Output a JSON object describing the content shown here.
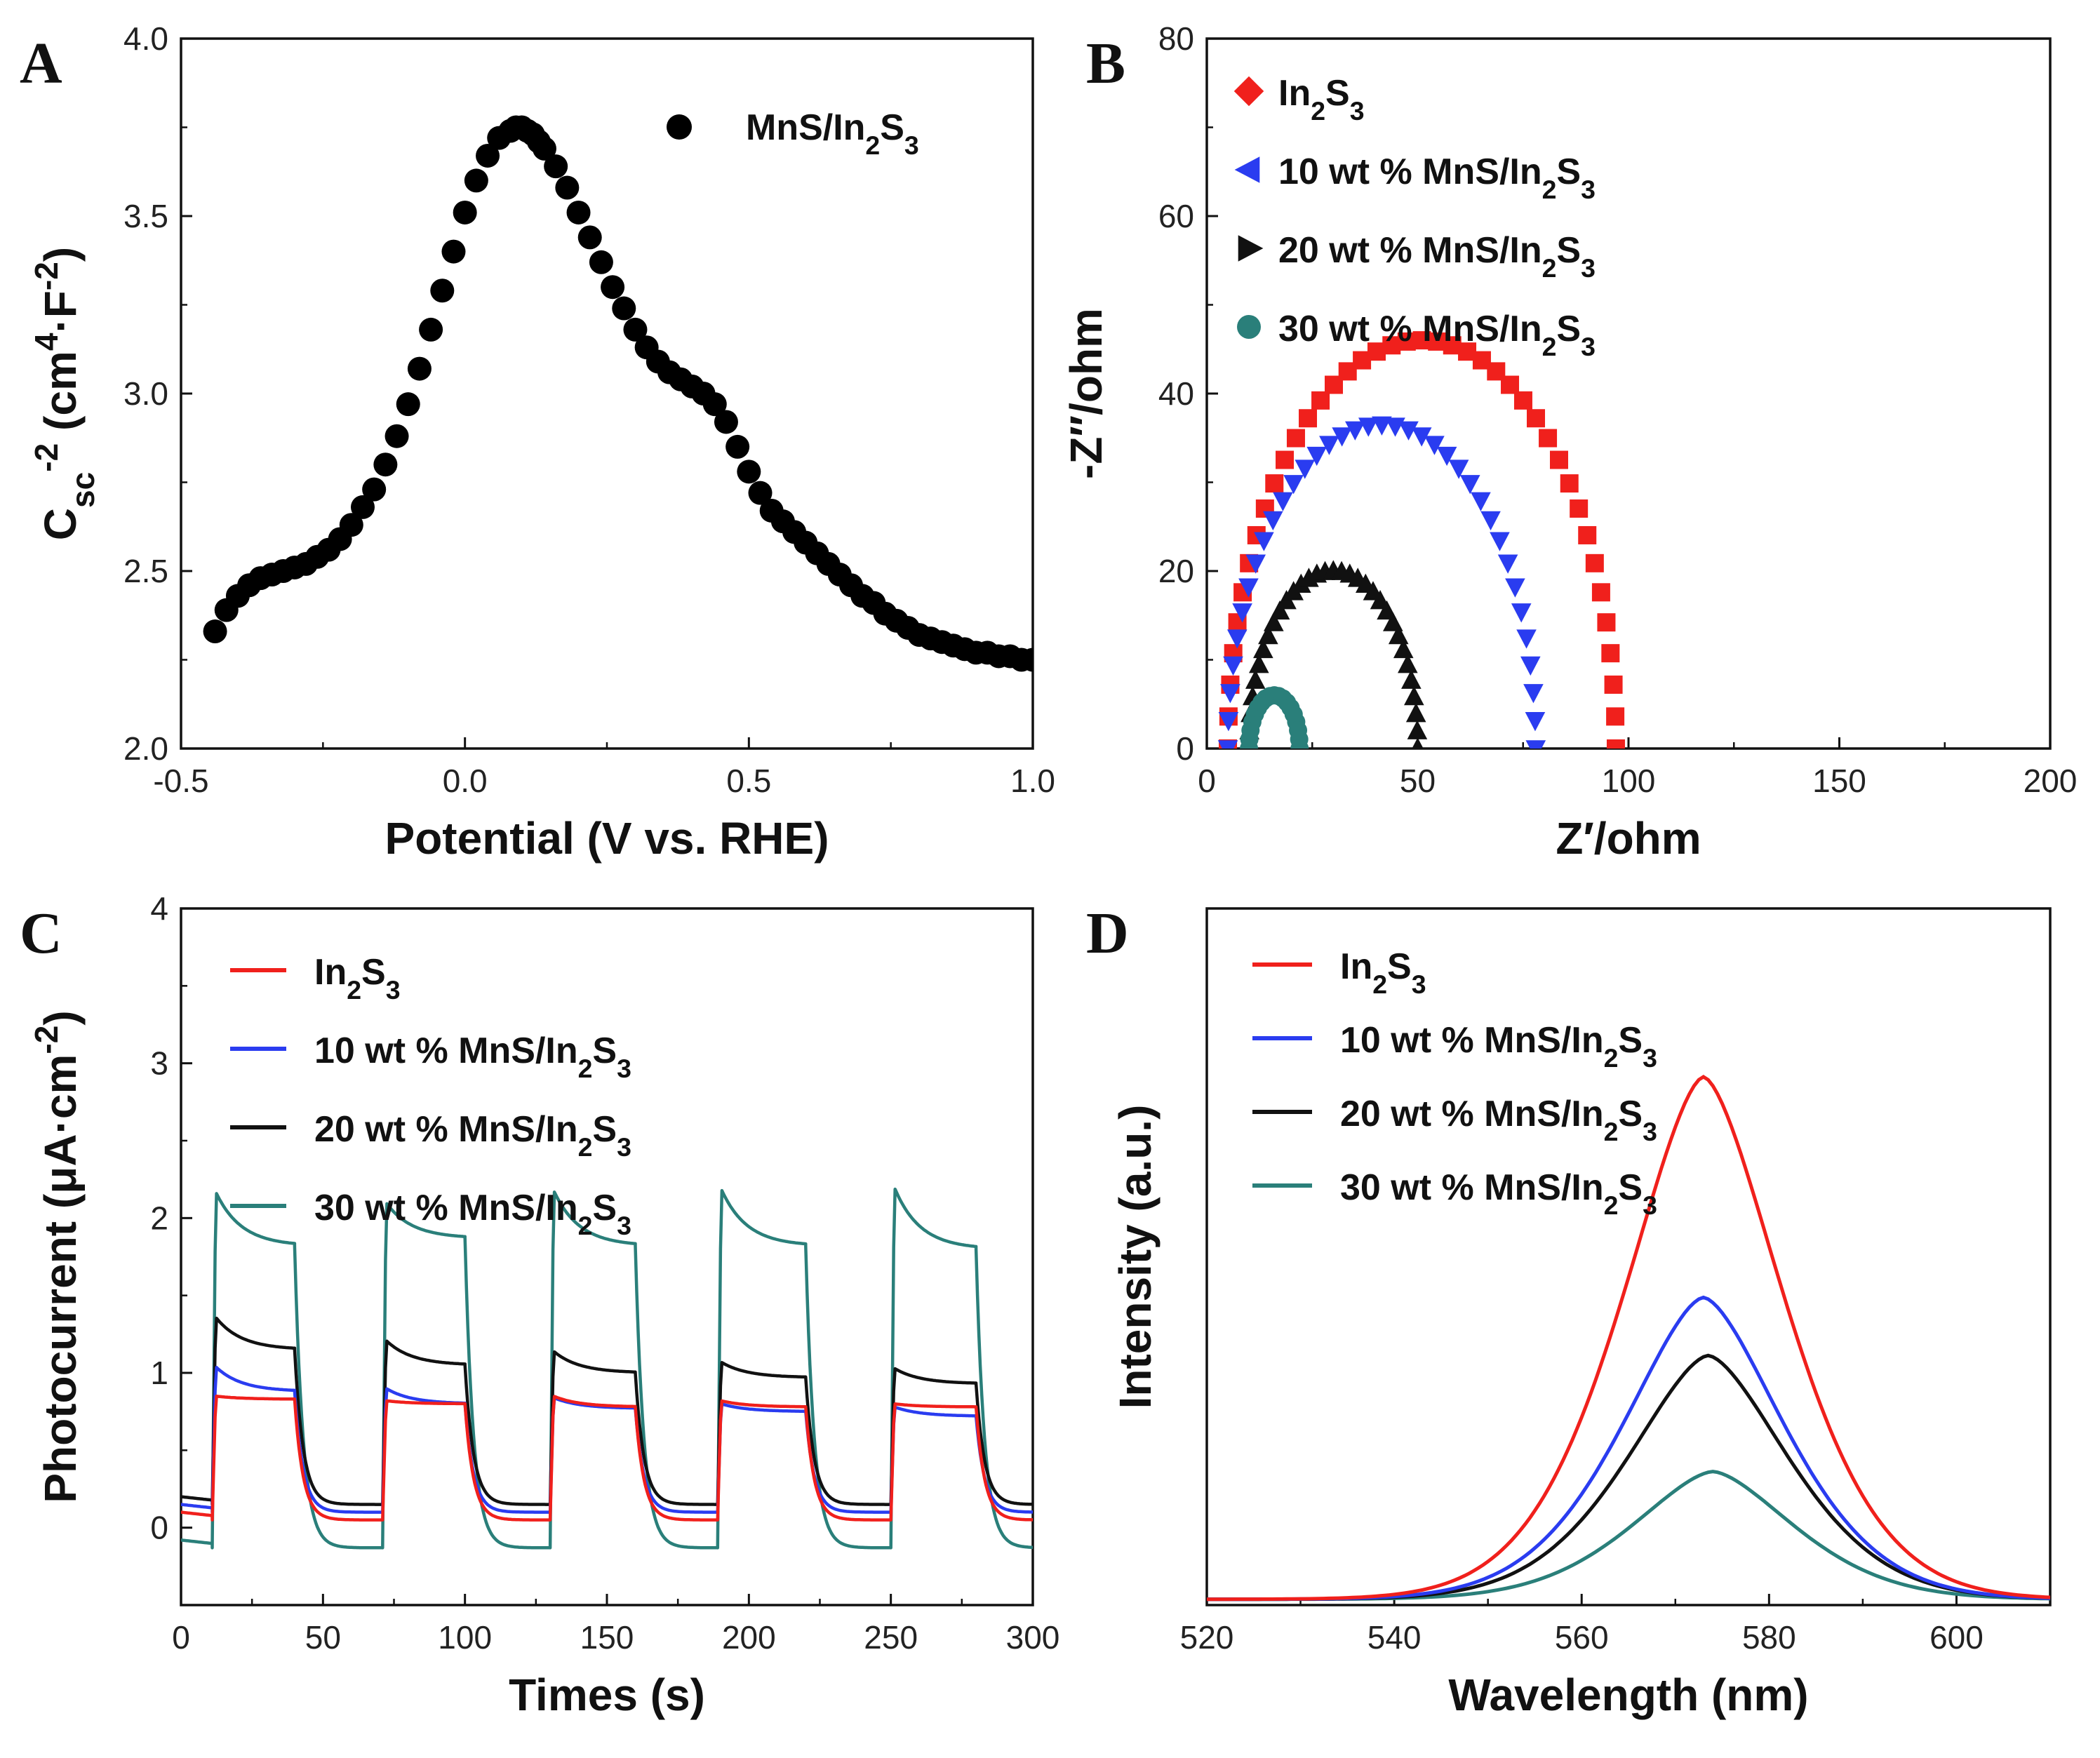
{
  "figure": {
    "background": "#ffffff",
    "subscript_format": "text between _{ } is typeset as subscript, between ^{ } as superscript"
  },
  "chart_data": [
    {
      "panel": "A",
      "type": "scatter",
      "xlabel": "Potential (V vs. RHE)",
      "ylabel": "C_{sc}^{-2} (cm^{4}·F^{-2})",
      "xlim": [
        -0.5,
        1.0
      ],
      "ylim": [
        2.0,
        4.0
      ],
      "xticks": [
        -0.5,
        0.0,
        0.5,
        1.0
      ],
      "xtick_labels": [
        "-0.5",
        "0.0",
        "0.5",
        "1.0"
      ],
      "yticks": [
        2.0,
        2.5,
        3.0,
        3.5,
        4.0
      ],
      "ytick_labels": [
        "2.0",
        "2.5",
        "3.0",
        "3.5",
        "4.0"
      ],
      "legend_position": "top-right",
      "series": [
        {
          "name": "MnS/In_{2}S_{3}",
          "color": "#000000",
          "marker": "circle",
          "x": [
            -0.44,
            -0.42,
            -0.4,
            -0.38,
            -0.36,
            -0.34,
            -0.32,
            -0.3,
            -0.28,
            -0.26,
            -0.24,
            -0.22,
            -0.2,
            -0.18,
            -0.16,
            -0.14,
            -0.12,
            -0.1,
            -0.08,
            -0.06,
            -0.04,
            -0.02,
            0.0,
            0.02,
            0.04,
            0.06,
            0.08,
            0.09,
            0.1,
            0.11,
            0.12,
            0.13,
            0.14,
            0.16,
            0.18,
            0.2,
            0.22,
            0.24,
            0.26,
            0.28,
            0.3,
            0.32,
            0.34,
            0.36,
            0.38,
            0.4,
            0.42,
            0.44,
            0.46,
            0.48,
            0.5,
            0.52,
            0.54,
            0.56,
            0.58,
            0.6,
            0.62,
            0.64,
            0.66,
            0.68,
            0.7,
            0.72,
            0.74,
            0.76,
            0.78,
            0.8,
            0.82,
            0.84,
            0.86,
            0.88,
            0.9,
            0.92,
            0.94,
            0.96,
            0.98,
            1.0
          ],
          "y": [
            2.33,
            2.39,
            2.43,
            2.46,
            2.48,
            2.49,
            2.5,
            2.51,
            2.52,
            2.54,
            2.56,
            2.59,
            2.63,
            2.68,
            2.73,
            2.8,
            2.88,
            2.97,
            3.07,
            3.18,
            3.29,
            3.4,
            3.51,
            3.6,
            3.67,
            3.72,
            3.74,
            3.75,
            3.75,
            3.74,
            3.73,
            3.71,
            3.69,
            3.64,
            3.58,
            3.51,
            3.44,
            3.37,
            3.3,
            3.24,
            3.18,
            3.13,
            3.09,
            3.06,
            3.04,
            3.02,
            3.0,
            2.97,
            2.92,
            2.85,
            2.78,
            2.72,
            2.67,
            2.64,
            2.61,
            2.58,
            2.55,
            2.52,
            2.49,
            2.46,
            2.43,
            2.41,
            2.38,
            2.36,
            2.34,
            2.32,
            2.31,
            2.3,
            2.29,
            2.28,
            2.27,
            2.27,
            2.26,
            2.26,
            2.25,
            2.25
          ]
        }
      ]
    },
    {
      "panel": "B",
      "type": "scatter",
      "xlabel": "Z′/ohm",
      "ylabel": "-Z″/ohm",
      "xlim": [
        0,
        200
      ],
      "ylim": [
        0,
        80
      ],
      "xticks": [
        0,
        50,
        100,
        150,
        200
      ],
      "xtick_labels": [
        "0",
        "50",
        "100",
        "150",
        "200"
      ],
      "yticks": [
        0,
        20,
        40,
        60,
        80
      ],
      "ytick_labels": [
        "0",
        "20",
        "40",
        "60",
        "80"
      ],
      "legend_position": "top-left",
      "series": [
        {
          "name": "In_{2}S_{3}",
          "color": "#f0201c",
          "marker": "square",
          "legend_marker": "diamond",
          "rs": 5,
          "zmax": 152,
          "r": 46,
          "n": 40
        },
        {
          "name": "10 wt % MnS/In_{2}S_{3}",
          "color": "#2a3cf0",
          "marker": "triangle-down",
          "legend_marker": "triangle-left",
          "rs": 5,
          "zmax": 135,
          "r": 36.5,
          "n": 36
        },
        {
          "name": "20 wt % MnS/In_{2}S_{3}",
          "color": "#111111",
          "marker": "triangle-up",
          "legend_marker": "triangle-right",
          "rs": 10,
          "zmax": 74,
          "r": 20,
          "n": 32
        },
        {
          "name": "30 wt % MnS/In_{2}S_{3}",
          "color": "#2a7f7a",
          "marker": "circle",
          "legend_marker": "circle",
          "rs": 10,
          "zmax": 33,
          "r": 6,
          "n": 18
        }
      ]
    },
    {
      "panel": "C",
      "type": "line",
      "xlabel": "Times (s)",
      "ylabel": "Photocurrent (μA·cm^{-2})",
      "xlim": [
        0,
        300
      ],
      "ylim": [
        -0.5,
        4
      ],
      "xticks": [
        0,
        50,
        100,
        150,
        200,
        250,
        300
      ],
      "xtick_labels": [
        "0",
        "50",
        "100",
        "150",
        "200",
        "250",
        "300"
      ],
      "yticks": [
        0,
        1,
        2,
        3,
        4
      ],
      "ytick_labels": [
        "0",
        "1",
        "2",
        "3",
        "4"
      ],
      "legend_position": "top-left",
      "light_on_off_cycles_s": [
        [
          11,
          40
        ],
        [
          71,
          100
        ],
        [
          130,
          160
        ],
        [
          189,
          220
        ],
        [
          250,
          280
        ]
      ],
      "series": [
        {
          "name": "In_{2}S_{3}",
          "color": "#f0201c",
          "dark": 0.05,
          "peaks": [
            0.85,
            0.82,
            0.85,
            0.82,
            0.8
          ],
          "plateaus": [
            0.83,
            0.8,
            0.78,
            0.78,
            0.78
          ]
        },
        {
          "name": "10 wt % MnS/In_{2}S_{3}",
          "color": "#2a3cf0",
          "dark": 0.1,
          "peaks": [
            1.04,
            0.9,
            0.84,
            0.8,
            0.78
          ],
          "plateaus": [
            0.88,
            0.8,
            0.77,
            0.75,
            0.72
          ]
        },
        {
          "name": "20 wt % MnS/In_{2}S_{3}",
          "color": "#111111",
          "dark": 0.15,
          "peaks": [
            1.36,
            1.21,
            1.14,
            1.07,
            1.03
          ],
          "plateaus": [
            1.15,
            1.05,
            1.0,
            0.97,
            0.93
          ]
        },
        {
          "name": "30 wt % MnS/In_{2}S_{3}",
          "color": "#2a7f7a",
          "dark": -0.13,
          "peaks": [
            2.17,
            2.1,
            2.18,
            2.19,
            2.2
          ],
          "plateaus": [
            1.82,
            1.87,
            1.82,
            1.82,
            1.8
          ]
        }
      ]
    },
    {
      "panel": "D",
      "type": "line",
      "xlabel": "Wavelength (nm)",
      "ylabel": "Intensity (a.u.)",
      "xlim": [
        520,
        610
      ],
      "ylim": [
        0,
        1.2
      ],
      "xticks": [
        520,
        540,
        560,
        580,
        600
      ],
      "xtick_labels": [
        "520",
        "540",
        "560",
        "580",
        "600"
      ],
      "yticks": [],
      "legend_position": "top-left",
      "series": [
        {
          "name": "In_{2}S_{3}",
          "color": "#f0201c",
          "peak_nm": 573,
          "peak": 0.9,
          "fwhm_nm": 20
        },
        {
          "name": "10 wt % MnS/In_{2}S_{3}",
          "color": "#2a3cf0",
          "peak_nm": 573,
          "peak": 0.52,
          "fwhm_nm": 20
        },
        {
          "name": "20 wt % MnS/In_{2}S_{3}",
          "color": "#111111",
          "peak_nm": 573.5,
          "peak": 0.42,
          "fwhm_nm": 20
        },
        {
          "name": "30 wt % MnS/In_{2}S_{3}",
          "color": "#2a7f7a",
          "peak_nm": 574,
          "peak": 0.22,
          "fwhm_nm": 20
        }
      ],
      "baseline": 0.01
    }
  ]
}
